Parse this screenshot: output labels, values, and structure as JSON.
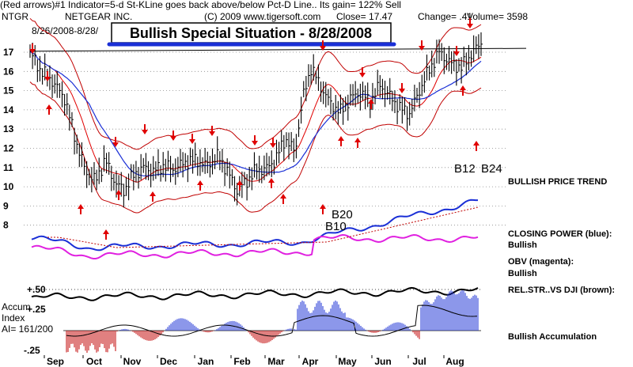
{
  "header": {
    "indicator_line": "(Red arrows)#1 Indicator=5-d St-KLine goes back above/below Pct-D Line.. Its gain= 122% Sell",
    "ticker": "NTGR",
    "company": "NETGEAR INC.",
    "copyright": "(C) 2009 www.tigersoft.com",
    "close_text": "Close= 17.47",
    "change_text": "Change= .41",
    "volume_text": "Volume= 3598",
    "date_range": "8/26/2008-8/28/"
  },
  "banner": {
    "title": "Bullish Special Situation - 8/28/2008"
  },
  "labels": {
    "price_trend": "BULLISH PRICE TREND",
    "closing_power": "CLOSING POWER (blue):",
    "closing_power_status": "Bullish",
    "obv": "OBV (magenta):",
    "obv_status": "Bullish",
    "rel_strength": "REL.STR..VS DJI (brown):",
    "accumulation_status": "Bullish Accumulation"
  },
  "accumulation": {
    "title_line1": "Accum",
    "title_line2": "Index",
    "ai_value": "AI= 161/200"
  },
  "colors": {
    "price_bars": "#000000",
    "bands": "#c00000",
    "moving_average_red": "#e00000",
    "moving_average_blue": "#1a2fd6",
    "closing_power": "#1a2fd6",
    "obv": "#e020e0",
    "rel_strength": "#000000",
    "accum_positive": "#1a2fd6",
    "accum_negative": "#c00000",
    "arrow": "#e00000"
  },
  "chart_data": {
    "type": "line",
    "title": "Bullish Special Situation - 8/28/2008",
    "x_type": "date",
    "xlabel": "",
    "ylabel": "",
    "ylim": [
      8,
      17
    ],
    "price_ticks": [
      "17",
      "16",
      "15",
      "14",
      "13",
      "12",
      "11",
      "10",
      "9",
      "8"
    ],
    "months": [
      "Sep",
      "Oct",
      "Nov",
      "Dec",
      "Jan",
      "Feb",
      "Mar",
      "Apr",
      "May",
      "Jun",
      "Jul",
      "Aug"
    ],
    "accum_axis": {
      "top": "+.50",
      "mid": "+.25",
      "bottom": "-.25"
    },
    "signals": [
      "B12",
      "B24",
      "B20",
      "B10"
    ],
    "close_price": [
      [
        "2007-08-28",
        17.0
      ],
      [
        "2007-09-05",
        16.1
      ],
      [
        "2007-09-15",
        15.5
      ],
      [
        "2007-09-25",
        14.6
      ],
      [
        "2007-10-05",
        12.2
      ],
      [
        "2007-10-12",
        10.8
      ],
      [
        "2007-10-20",
        10.3
      ],
      [
        "2007-10-28",
        11.4
      ],
      [
        "2007-11-05",
        10.2
      ],
      [
        "2007-11-12",
        9.8
      ],
      [
        "2007-11-20",
        10.6
      ],
      [
        "2007-11-28",
        11.0
      ],
      [
        "2007-12-06",
        10.8
      ],
      [
        "2007-12-14",
        11.1
      ],
      [
        "2007-12-22",
        10.9
      ],
      [
        "2008-01-02",
        11.3
      ],
      [
        "2008-01-10",
        11.4
      ],
      [
        "2008-01-18",
        11.1
      ],
      [
        "2008-01-28",
        11.6
      ],
      [
        "2008-02-05",
        10.7
      ],
      [
        "2008-02-12",
        9.8
      ],
      [
        "2008-02-20",
        10.3
      ],
      [
        "2008-02-28",
        10.9
      ],
      [
        "2008-03-06",
        10.9
      ],
      [
        "2008-03-14",
        11.4
      ],
      [
        "2008-03-22",
        12.5
      ],
      [
        "2008-03-30",
        11.8
      ],
      [
        "2008-04-05",
        14.5
      ],
      [
        "2008-04-12",
        16.2
      ],
      [
        "2008-04-20",
        15.2
      ],
      [
        "2008-04-28",
        14.3
      ],
      [
        "2008-05-06",
        13.9
      ],
      [
        "2008-05-14",
        14.6
      ],
      [
        "2008-05-22",
        14.9
      ],
      [
        "2008-05-30",
        14.4
      ],
      [
        "2008-06-07",
        15.3
      ],
      [
        "2008-06-15",
        14.7
      ],
      [
        "2008-06-23",
        14.1
      ],
      [
        "2008-07-01",
        13.8
      ],
      [
        "2008-07-09",
        15.0
      ],
      [
        "2008-07-17",
        16.1
      ],
      [
        "2008-07-25",
        17.0
      ],
      [
        "2008-08-04",
        16.4
      ],
      [
        "2008-08-12",
        16.2
      ],
      [
        "2008-08-20",
        16.9
      ],
      [
        "2008-08-28",
        17.47
      ]
    ]
  }
}
